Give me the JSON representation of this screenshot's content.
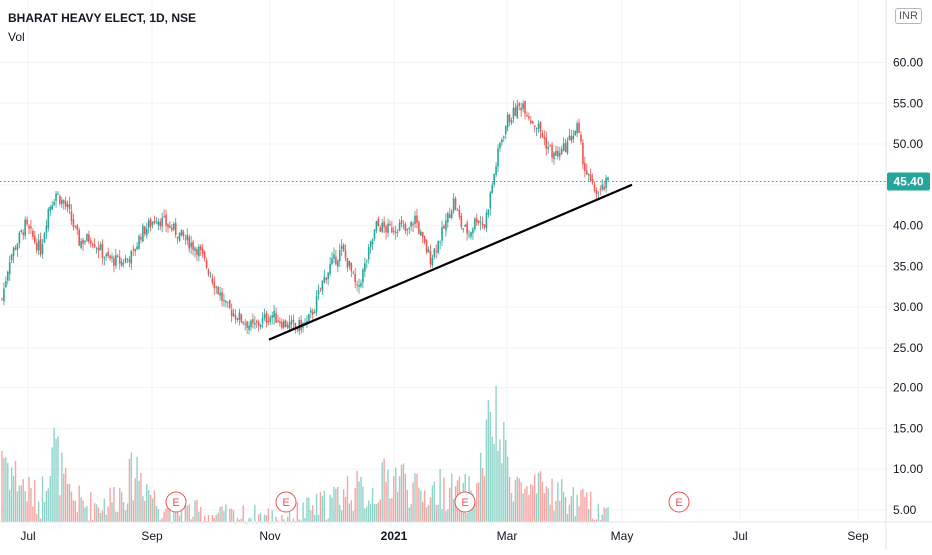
{
  "legend": {
    "title": "BHARAT HEAVY ELECT, 1D, NSE",
    "volume_label": "Vol"
  },
  "currency": "INR",
  "colors": {
    "up": "#26a69a",
    "down": "#ef5350",
    "up_volume": "#8fd3c9",
    "down_volume": "#f6a5a3",
    "last_price": "#26a69a",
    "trendline": "#000000",
    "grid": "#f0f3fa",
    "axis_text": "#131722",
    "earnings": "#ef5350"
  },
  "chart_data": {
    "type": "candlestick",
    "title": "BHARAT HEAVY ELECT, 1D, NSE",
    "price_axis": {
      "ticks": [
        "60.00",
        "55.00",
        "50.00",
        "45.00",
        "40.00",
        "35.00",
        "30.00",
        "25.00"
      ],
      "range": [
        20,
        62
      ]
    },
    "volume_axis": {
      "ticks": [
        "20.00",
        "15.00",
        "10.00",
        "5.00"
      ],
      "range": [
        3,
        21
      ]
    },
    "x_axis": {
      "ticks": [
        "Jul",
        "Sep",
        "Nov",
        "2021",
        "Mar",
        "May",
        "Jul",
        "Sep"
      ]
    },
    "last_price": 45.4,
    "last_price_label": "45.40",
    "earnings_marker": "E",
    "earnings_count": 5,
    "trendline": {
      "from": [
        "late Oct 2020",
        26.0
      ],
      "to": [
        "late Apr 2021",
        45.0
      ]
    },
    "price_path": [
      [
        0,
        31
      ],
      [
        4,
        36
      ],
      [
        12,
        40
      ],
      [
        20,
        37
      ],
      [
        24,
        42
      ],
      [
        28,
        44
      ],
      [
        34,
        42
      ],
      [
        40,
        38
      ],
      [
        46,
        38.5
      ],
      [
        54,
        36
      ],
      [
        62,
        35.5
      ],
      [
        68,
        36.5
      ],
      [
        72,
        39
      ],
      [
        80,
        41
      ],
      [
        86,
        40
      ],
      [
        94,
        38.5
      ],
      [
        102,
        37
      ],
      [
        110,
        33
      ],
      [
        116,
        30
      ],
      [
        124,
        28.5
      ],
      [
        130,
        27.5
      ],
      [
        136,
        28.5
      ],
      [
        140,
        29
      ],
      [
        146,
        28
      ],
      [
        152,
        27.5
      ],
      [
        158,
        28
      ],
      [
        162,
        30
      ],
      [
        166,
        33
      ],
      [
        170,
        35
      ],
      [
        176,
        37
      ],
      [
        180,
        35
      ],
      [
        184,
        32
      ],
      [
        188,
        35
      ],
      [
        194,
        40
      ],
      [
        200,
        39.5
      ],
      [
        206,
        40
      ],
      [
        210,
        39
      ],
      [
        214,
        41
      ],
      [
        218,
        38
      ],
      [
        222,
        36
      ],
      [
        228,
        39
      ],
      [
        234,
        43
      ],
      [
        238,
        40
      ],
      [
        242,
        39
      ],
      [
        246,
        41
      ],
      [
        250,
        40
      ],
      [
        254,
        45
      ],
      [
        258,
        50
      ],
      [
        262,
        53
      ],
      [
        266,
        54
      ],
      [
        270,
        55
      ],
      [
        274,
        53
      ],
      [
        278,
        52
      ],
      [
        282,
        50
      ],
      [
        286,
        48.5
      ],
      [
        290,
        49
      ],
      [
        294,
        50.5
      ],
      [
        298,
        52
      ],
      [
        302,
        47
      ],
      [
        306,
        44.5
      ],
      [
        310,
        44
      ],
      [
        314,
        45.4
      ]
    ],
    "volume_path": [
      [
        0,
        15
      ],
      [
        4,
        12
      ],
      [
        12,
        9
      ],
      [
        20,
        7
      ],
      [
        26,
        16
      ],
      [
        34,
        8
      ],
      [
        44,
        6.5
      ],
      [
        54,
        7
      ],
      [
        64,
        9
      ],
      [
        70,
        12
      ],
      [
        80,
        7
      ],
      [
        90,
        6
      ],
      [
        100,
        5.5
      ],
      [
        112,
        5
      ],
      [
        124,
        5
      ],
      [
        136,
        5
      ],
      [
        148,
        5
      ],
      [
        160,
        6
      ],
      [
        170,
        7
      ],
      [
        180,
        9
      ],
      [
        190,
        8
      ],
      [
        198,
        10
      ],
      [
        206,
        11
      ],
      [
        216,
        8
      ],
      [
        228,
        9
      ],
      [
        238,
        8
      ],
      [
        246,
        9
      ],
      [
        254,
        19.5
      ],
      [
        260,
        14
      ],
      [
        266,
        10
      ],
      [
        274,
        8
      ],
      [
        282,
        9
      ],
      [
        290,
        8
      ],
      [
        298,
        7
      ],
      [
        306,
        6.5
      ],
      [
        314,
        5.5
      ]
    ]
  }
}
